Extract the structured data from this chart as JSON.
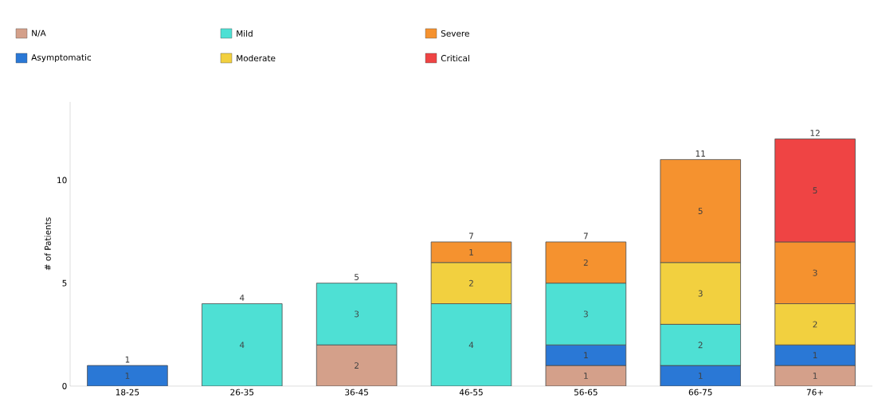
{
  "chart_data": {
    "type": "bar",
    "stacked": true,
    "ylabel": "# of Patients",
    "categories": [
      "18-25",
      "26-35",
      "36-45",
      "46-55",
      "56-65",
      "66-75",
      "76+"
    ],
    "series": [
      {
        "name": "N/A",
        "color": "#d4a08a",
        "values": [
          null,
          null,
          2,
          null,
          1,
          null,
          1
        ]
      },
      {
        "name": "Asymptomatic",
        "color": "#2a78d6",
        "values": [
          1,
          null,
          null,
          null,
          1,
          1,
          1
        ]
      },
      {
        "name": "Mild",
        "color": "#4ee0d4",
        "values": [
          null,
          4,
          3,
          4,
          3,
          2,
          null
        ]
      },
      {
        "name": "Moderate",
        "color": "#f2d03f",
        "values": [
          null,
          null,
          null,
          2,
          null,
          3,
          2
        ]
      },
      {
        "name": "Severe",
        "color": "#f5922f",
        "values": [
          null,
          null,
          null,
          1,
          2,
          5,
          3
        ]
      },
      {
        "name": "Critical",
        "color": "#ef4444",
        "values": [
          null,
          null,
          null,
          null,
          null,
          null,
          5
        ]
      }
    ],
    "totals": [
      "1",
      "4",
      "5",
      "7",
      "7",
      "11",
      "12"
    ],
    "data_labels": true,
    "ylim": [
      0,
      13.8
    ],
    "yticks": [
      0,
      5,
      10
    ],
    "legend": "top left"
  }
}
